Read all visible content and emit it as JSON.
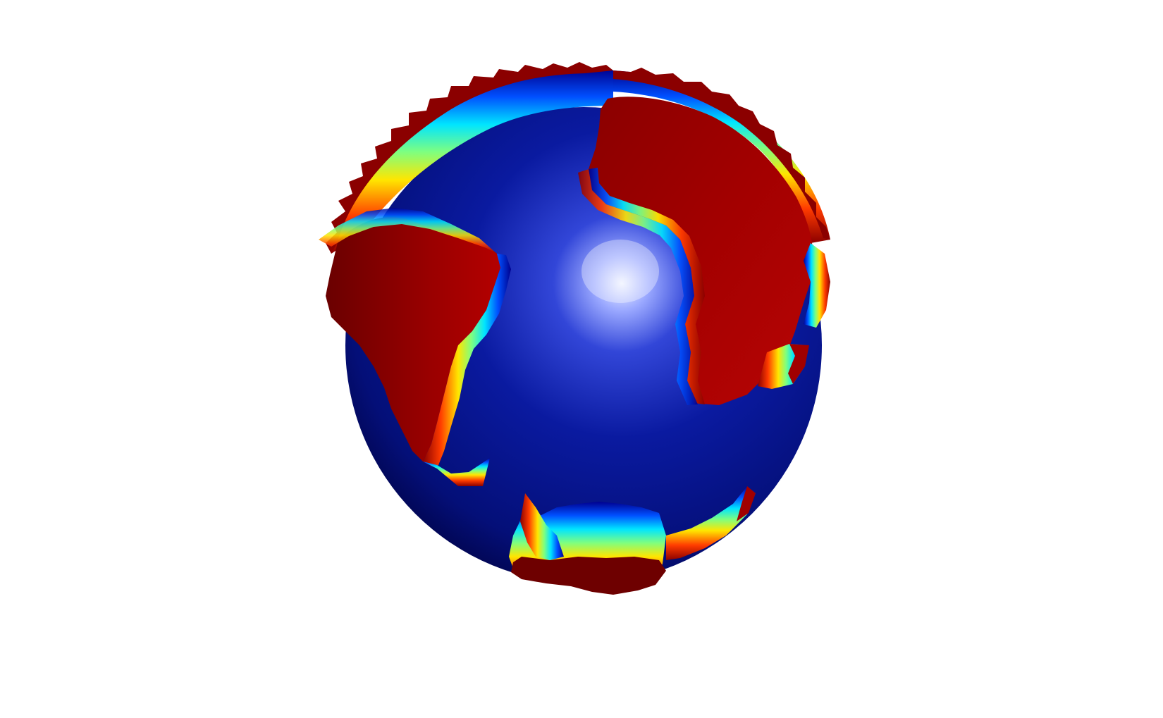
{
  "scene": {
    "subject": "globe",
    "colormap": "jet",
    "colors": {
      "background": "#ffffff",
      "ocean_highlight": "#e6ecff",
      "ocean_light": "#3a52e0",
      "ocean_mid": "#0a1aa0",
      "ocean_dark": "#00004a",
      "land_light": "#b30000",
      "land_dark": "#6e0000",
      "jet": [
        "#00008f",
        "#0050ff",
        "#00e5ff",
        "#7fff7f",
        "#ffe600",
        "#ff6a00",
        "#d40000",
        "#8b0000"
      ]
    }
  }
}
